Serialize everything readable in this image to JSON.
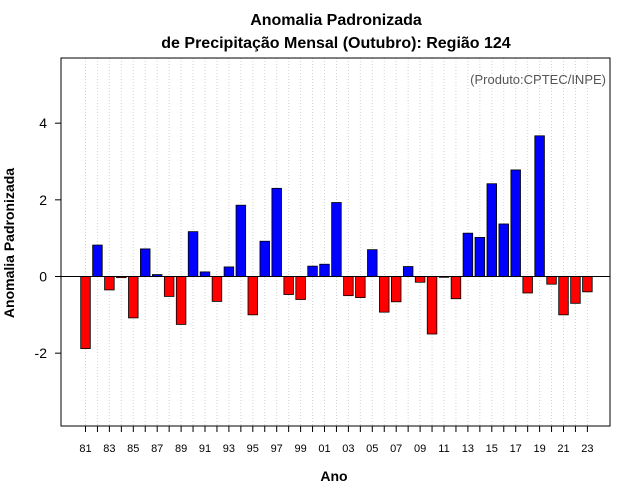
{
  "chart_data": {
    "type": "bar",
    "title": "Anomalia Padronizada",
    "subtitle": "de Precipitação Mensal (Outubro): Região 124",
    "xlabel": "Ano",
    "ylabel": "Anomalia Padronizada",
    "credit": "(Produto:CPTEC/INPE)",
    "ylim": [
      -3.9,
      5.7
    ],
    "yticks": [
      -2,
      0,
      2,
      4
    ],
    "ytick_labels": [
      "-2",
      "0",
      "2",
      "4"
    ],
    "grid": true,
    "categories": [
      "1981",
      "1982",
      "1983",
      "1984",
      "1985",
      "1986",
      "1987",
      "1988",
      "1989",
      "1990",
      "1991",
      "1992",
      "1993",
      "1994",
      "1995",
      "1996",
      "1997",
      "1998",
      "1999",
      "2000",
      "2001",
      "2002",
      "2003",
      "2004",
      "2005",
      "2006",
      "2007",
      "2008",
      "2009",
      "2010",
      "2011",
      "2012",
      "2013",
      "2014",
      "2015",
      "2016",
      "2017",
      "2018",
      "2019",
      "2020",
      "2021",
      "2022",
      "2023"
    ],
    "xtick_labels": [
      "81",
      "83",
      "85",
      "87",
      "89",
      "91",
      "93",
      "95",
      "97",
      "99",
      "01",
      "03",
      "05",
      "07",
      "09",
      "11",
      "13",
      "15",
      "17",
      "19",
      "21",
      "23"
    ],
    "values": [
      -1.88,
      0.82,
      -0.35,
      -0.03,
      -1.08,
      0.72,
      0.05,
      -0.52,
      -1.25,
      1.17,
      0.12,
      -0.65,
      0.25,
      1.86,
      -1.0,
      0.92,
      2.3,
      -0.47,
      -0.6,
      0.27,
      0.32,
      1.93,
      -0.5,
      -0.55,
      0.7,
      -0.93,
      -0.66,
      0.26,
      -0.15,
      -1.5,
      -0.02,
      -0.58,
      1.13,
      1.02,
      2.42,
      1.37,
      2.78,
      -0.43,
      3.67,
      -0.2,
      -1.0,
      -0.7,
      -0.4
    ],
    "colors": {
      "positive": "#0000ff",
      "negative": "#ff0000",
      "outline": "#000000",
      "grid": "#d3d3d3",
      "credit": "#555555"
    }
  }
}
